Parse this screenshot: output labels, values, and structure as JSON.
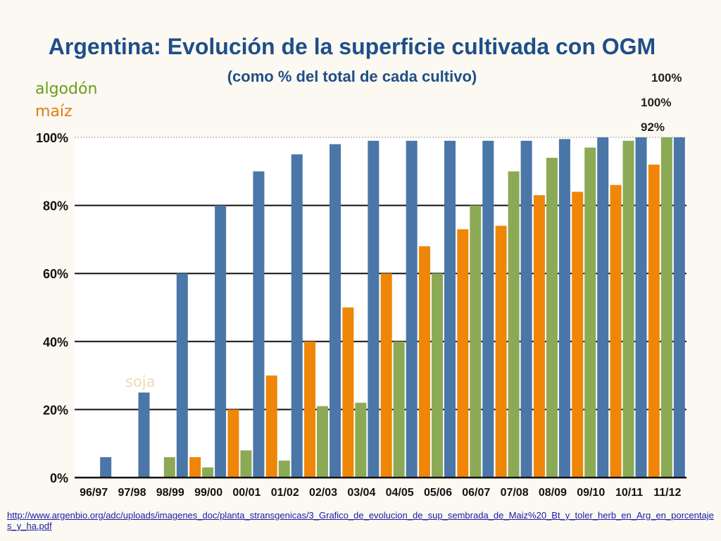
{
  "slide": {
    "title": "Argentina: Evolución de la superficie cultivada con OGM",
    "subtitle": "(como % del total de cada cultivo)",
    "legend_labels": {
      "algodon": "algodón",
      "maiz": "maíz",
      "soja": "soja"
    },
    "final_value_labels": [
      "100%",
      "100%",
      "92%"
    ],
    "source_link": "http://www.argenbio.org/adc/uploads/imagenes_doc/planta_stransgenicas/3_Grafico_de_evolucion_de_sup_sembrada_de_Maiz%20_Bt_y_toler_herb_en_Arg_en_porcentajes_y_ha.pdf"
  },
  "chart_data": {
    "type": "bar",
    "title": "Argentina: Evolución de la superficie cultivada con OGM",
    "subtitle": "(como % del total de cada cultivo)",
    "categories": [
      "96/97",
      "97/98",
      "98/99",
      "99/00",
      "00/01",
      "01/02",
      "02/03",
      "03/04",
      "04/05",
      "05/06",
      "06/07",
      "07/08",
      "08/09",
      "09/10",
      "10/11",
      "11/12"
    ],
    "series": [
      {
        "name": "maíz",
        "color": "#ef8608",
        "values": [
          0,
          0,
          0,
          6,
          20,
          30,
          40,
          50,
          60,
          68,
          73,
          74,
          83,
          84,
          86,
          92
        ]
      },
      {
        "name": "algodón",
        "color": "#8caa55",
        "values": [
          0,
          0,
          6,
          3,
          8,
          5,
          21,
          22,
          40,
          60,
          80,
          90,
          94,
          97,
          99,
          100
        ]
      },
      {
        "name": "soja",
        "color": "#4a76a8",
        "values": [
          6,
          25,
          60,
          80,
          90,
          95,
          98,
          99,
          99,
          99,
          99,
          99,
          99.5,
          100,
          100,
          100
        ]
      }
    ],
    "yticks": [
      "0%",
      "20%",
      "40%",
      "60%",
      "80%",
      "100%"
    ],
    "ylim": [
      0,
      100
    ],
    "grid": true,
    "legend": "top-left"
  }
}
